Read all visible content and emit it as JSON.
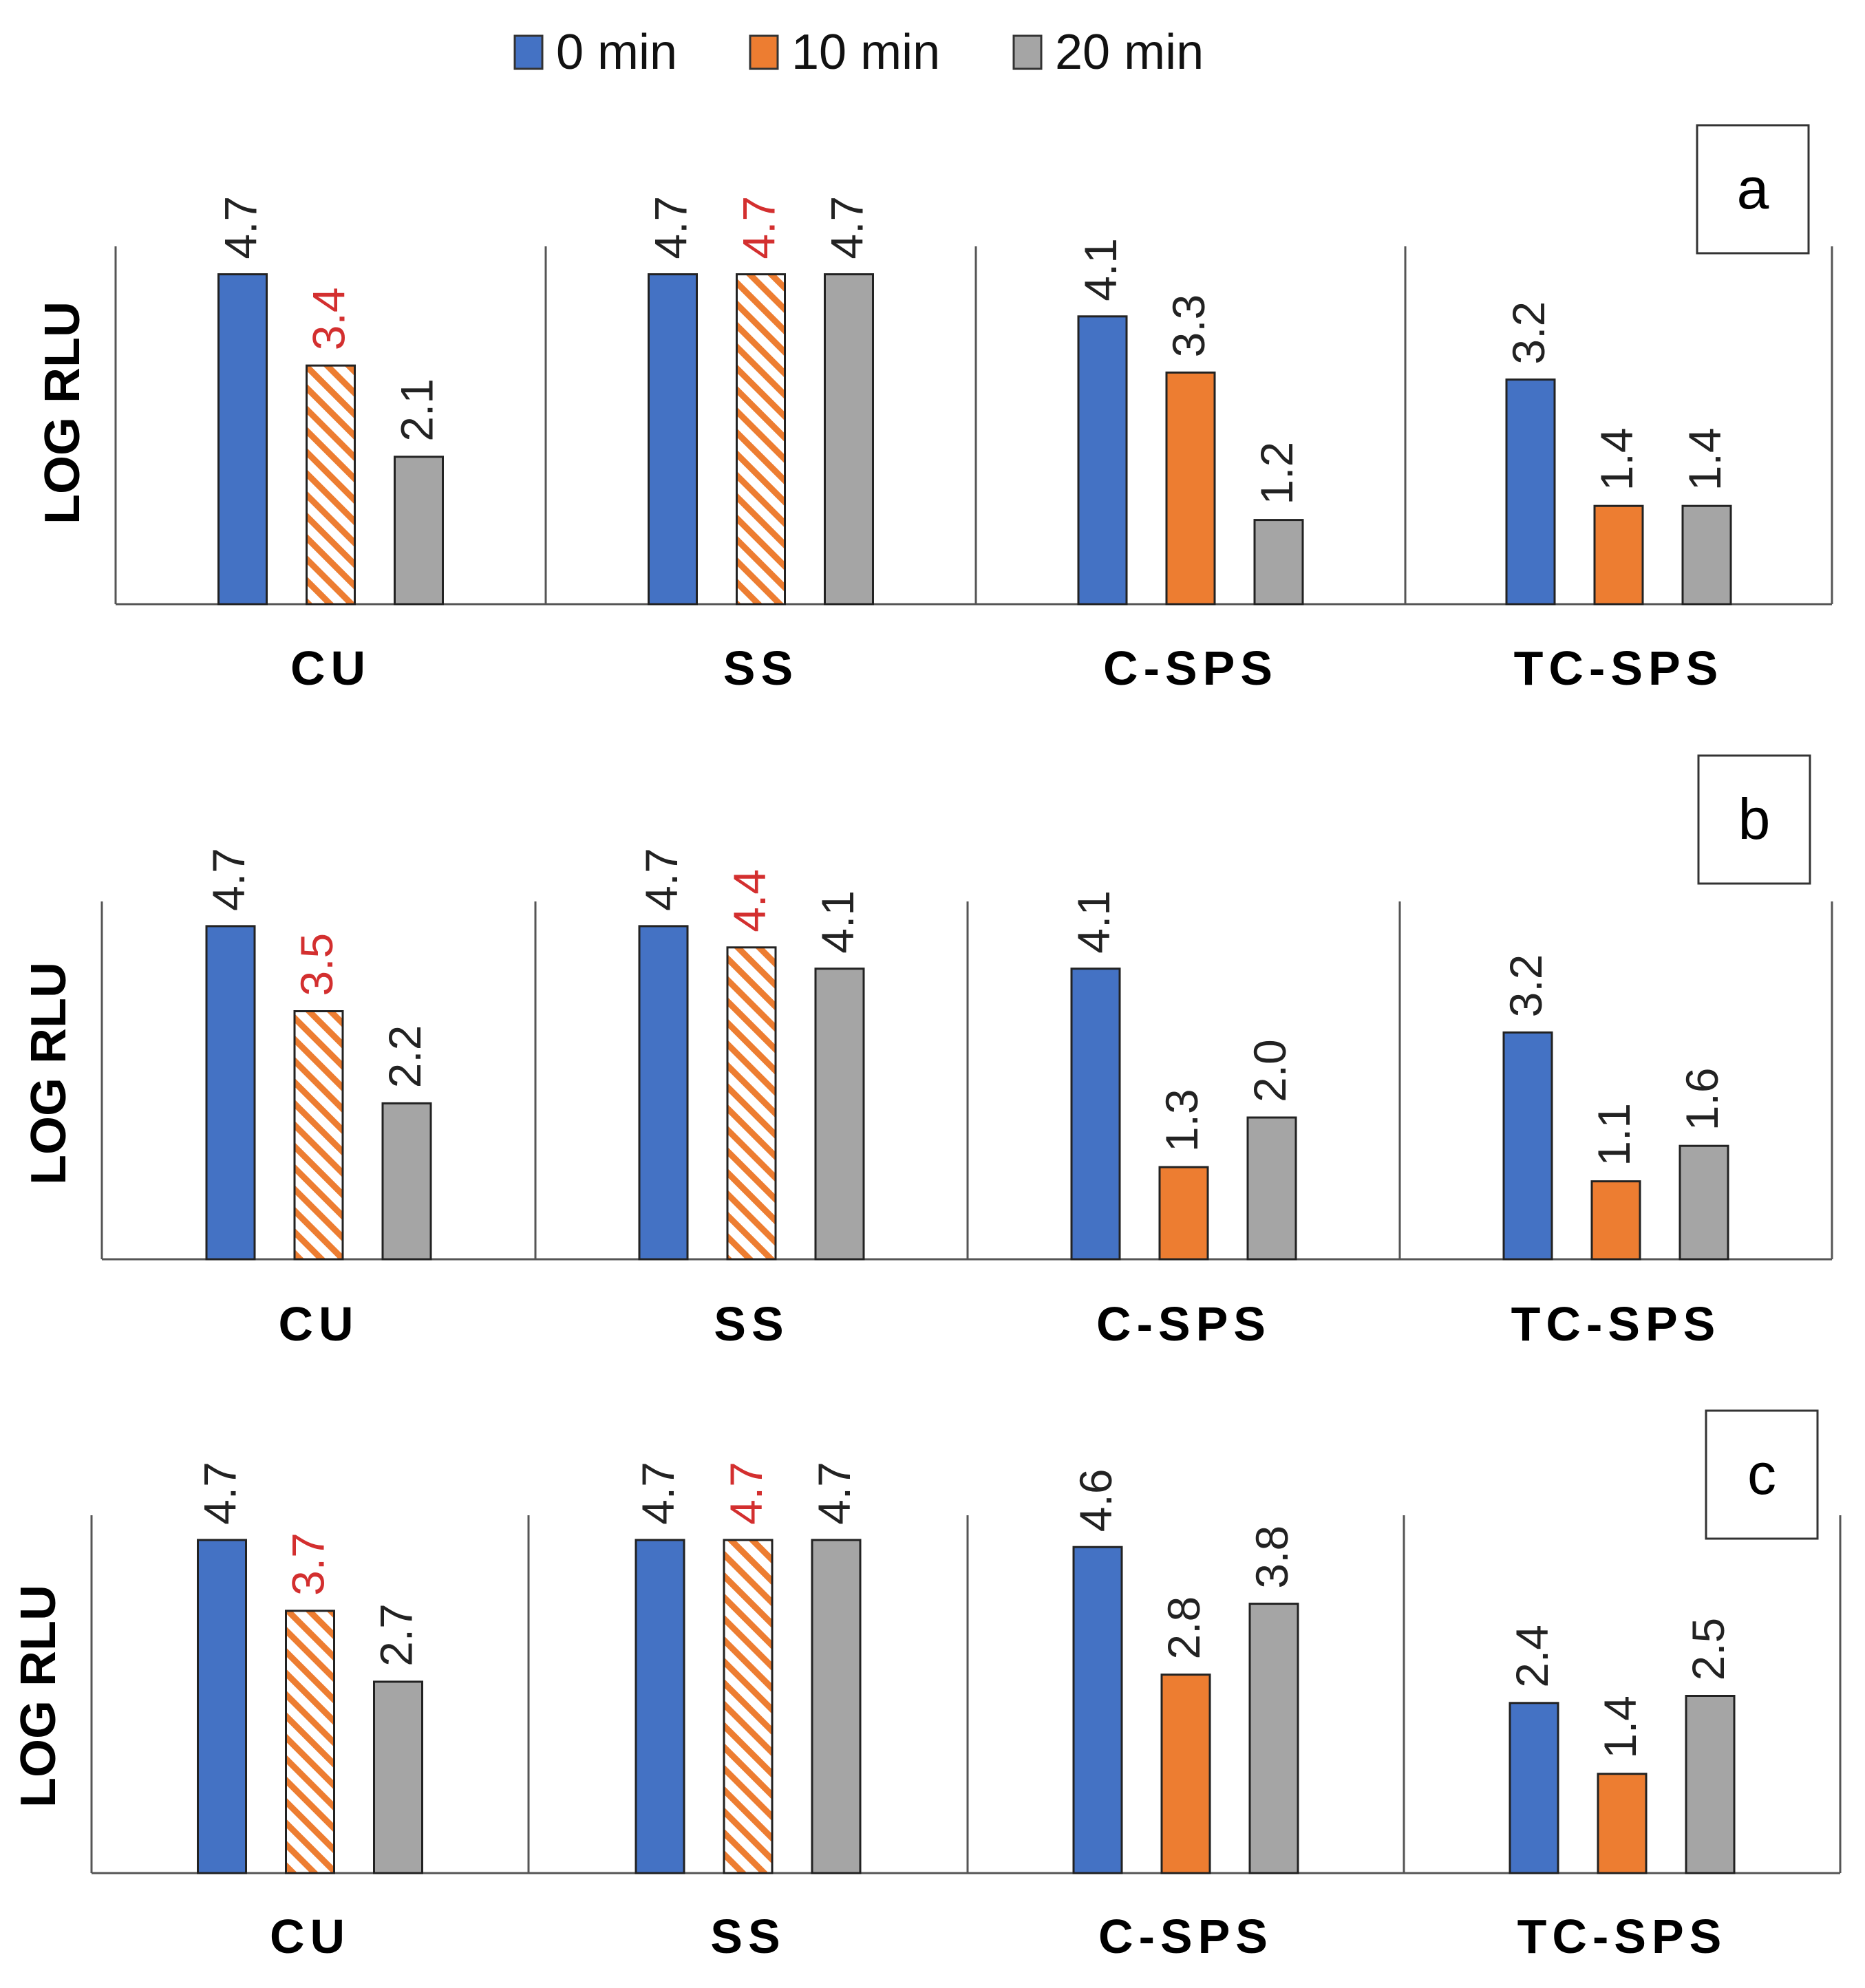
{
  "legend": [
    {
      "label": "0 min",
      "color": "#4472C4"
    },
    {
      "label": "10 min",
      "color": "#ED7D31"
    },
    {
      "label": "20 min",
      "color": "#A5A5A5"
    }
  ],
  "highlight_color": "#D32F2F",
  "label_color": "#222222",
  "chart_data": [
    {
      "type": "bar",
      "panel": "a",
      "ylabel": "LOG RLU",
      "categories": [
        "CU",
        "SS",
        "C-SPS",
        "TC-SPS"
      ],
      "series": [
        {
          "name": "0 min",
          "values": [
            4.7,
            4.7,
            4.1,
            3.2
          ]
        },
        {
          "name": "10 min",
          "values": [
            3.4,
            4.7,
            3.3,
            1.4
          ],
          "hatched": [
            true,
            true,
            false,
            false
          ]
        },
        {
          "name": "20 min",
          "values": [
            2.1,
            4.7,
            1.2,
            1.4
          ]
        }
      ],
      "labels": [
        [
          "4.7",
          "4.7",
          "4.1",
          "3.2"
        ],
        [
          "3.4",
          "4.7",
          "3.3",
          "1.4"
        ],
        [
          "2.1",
          "4.7",
          "1.2",
          "1.4"
        ]
      ],
      "ylim": [
        0,
        5
      ]
    },
    {
      "type": "bar",
      "panel": "b",
      "ylabel": "LOG RLU",
      "categories": [
        "CU",
        "SS",
        "C-SPS",
        "TC-SPS"
      ],
      "series": [
        {
          "name": "0 min",
          "values": [
            4.7,
            4.7,
            4.1,
            3.2
          ]
        },
        {
          "name": "10 min",
          "values": [
            3.5,
            4.4,
            1.3,
            1.1
          ],
          "hatched": [
            true,
            true,
            false,
            false
          ]
        },
        {
          "name": "20 min",
          "values": [
            2.2,
            4.1,
            2.0,
            1.6
          ]
        }
      ],
      "labels": [
        [
          "4.7",
          "4.7",
          "4.1",
          "3.2"
        ],
        [
          "3.5",
          "4.4",
          "1.3",
          "1.1"
        ],
        [
          "2.2",
          "4.1",
          "2.0",
          "1.6"
        ]
      ],
      "ylim": [
        0,
        5
      ]
    },
    {
      "type": "bar",
      "panel": "c",
      "ylabel": "LOG RLU",
      "categories": [
        "CU",
        "SS",
        "C-SPS",
        "TC-SPS"
      ],
      "series": [
        {
          "name": "0 min",
          "values": [
            4.7,
            4.7,
            4.6,
            2.4
          ]
        },
        {
          "name": "10 min",
          "values": [
            3.7,
            4.7,
            2.8,
            1.4
          ],
          "hatched": [
            true,
            true,
            false,
            false
          ]
        },
        {
          "name": "20 min",
          "values": [
            2.7,
            4.7,
            3.8,
            2.5
          ]
        }
      ],
      "labels": [
        [
          "4.7",
          "4.7",
          "4.6",
          "2.4"
        ],
        [
          "3.7",
          "4.7",
          "2.8",
          "1.4"
        ],
        [
          "2.7",
          "4.7",
          "3.8",
          "2.5"
        ]
      ],
      "ylim": [
        0,
        5
      ]
    }
  ]
}
